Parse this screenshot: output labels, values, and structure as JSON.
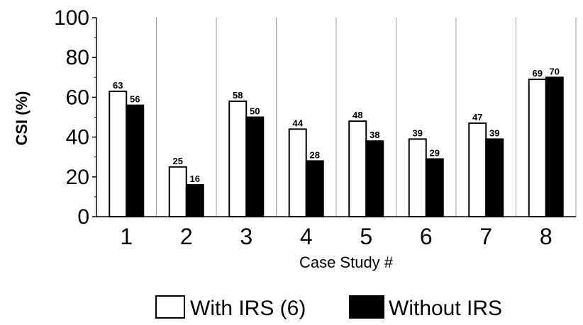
{
  "chart_data": {
    "type": "bar",
    "categories": [
      "1",
      "2",
      "3",
      "4",
      "5",
      "6",
      "7",
      "8"
    ],
    "series": [
      {
        "name": "With IRS (6)",
        "values": [
          63,
          25,
          58,
          44,
          48,
          39,
          47,
          69
        ],
        "fill": "#ffffff",
        "stroke": "#000000"
      },
      {
        "name": "Without IRS",
        "values": [
          56,
          16,
          50,
          28,
          38,
          29,
          39,
          70
        ],
        "fill": "#000000",
        "stroke": "#000000"
      }
    ],
    "xlabel": "Case Study #",
    "ylabel": "CSI (%)",
    "ylim": [
      0,
      100
    ],
    "yticks": [
      "0",
      "20",
      "40",
      "60",
      "80",
      "100"
    ],
    "grid": "vertical separators",
    "legend_position": "bottom-center",
    "colors": {
      "axis": "#000000",
      "grid": "#999999",
      "background": "#ffffff"
    }
  }
}
